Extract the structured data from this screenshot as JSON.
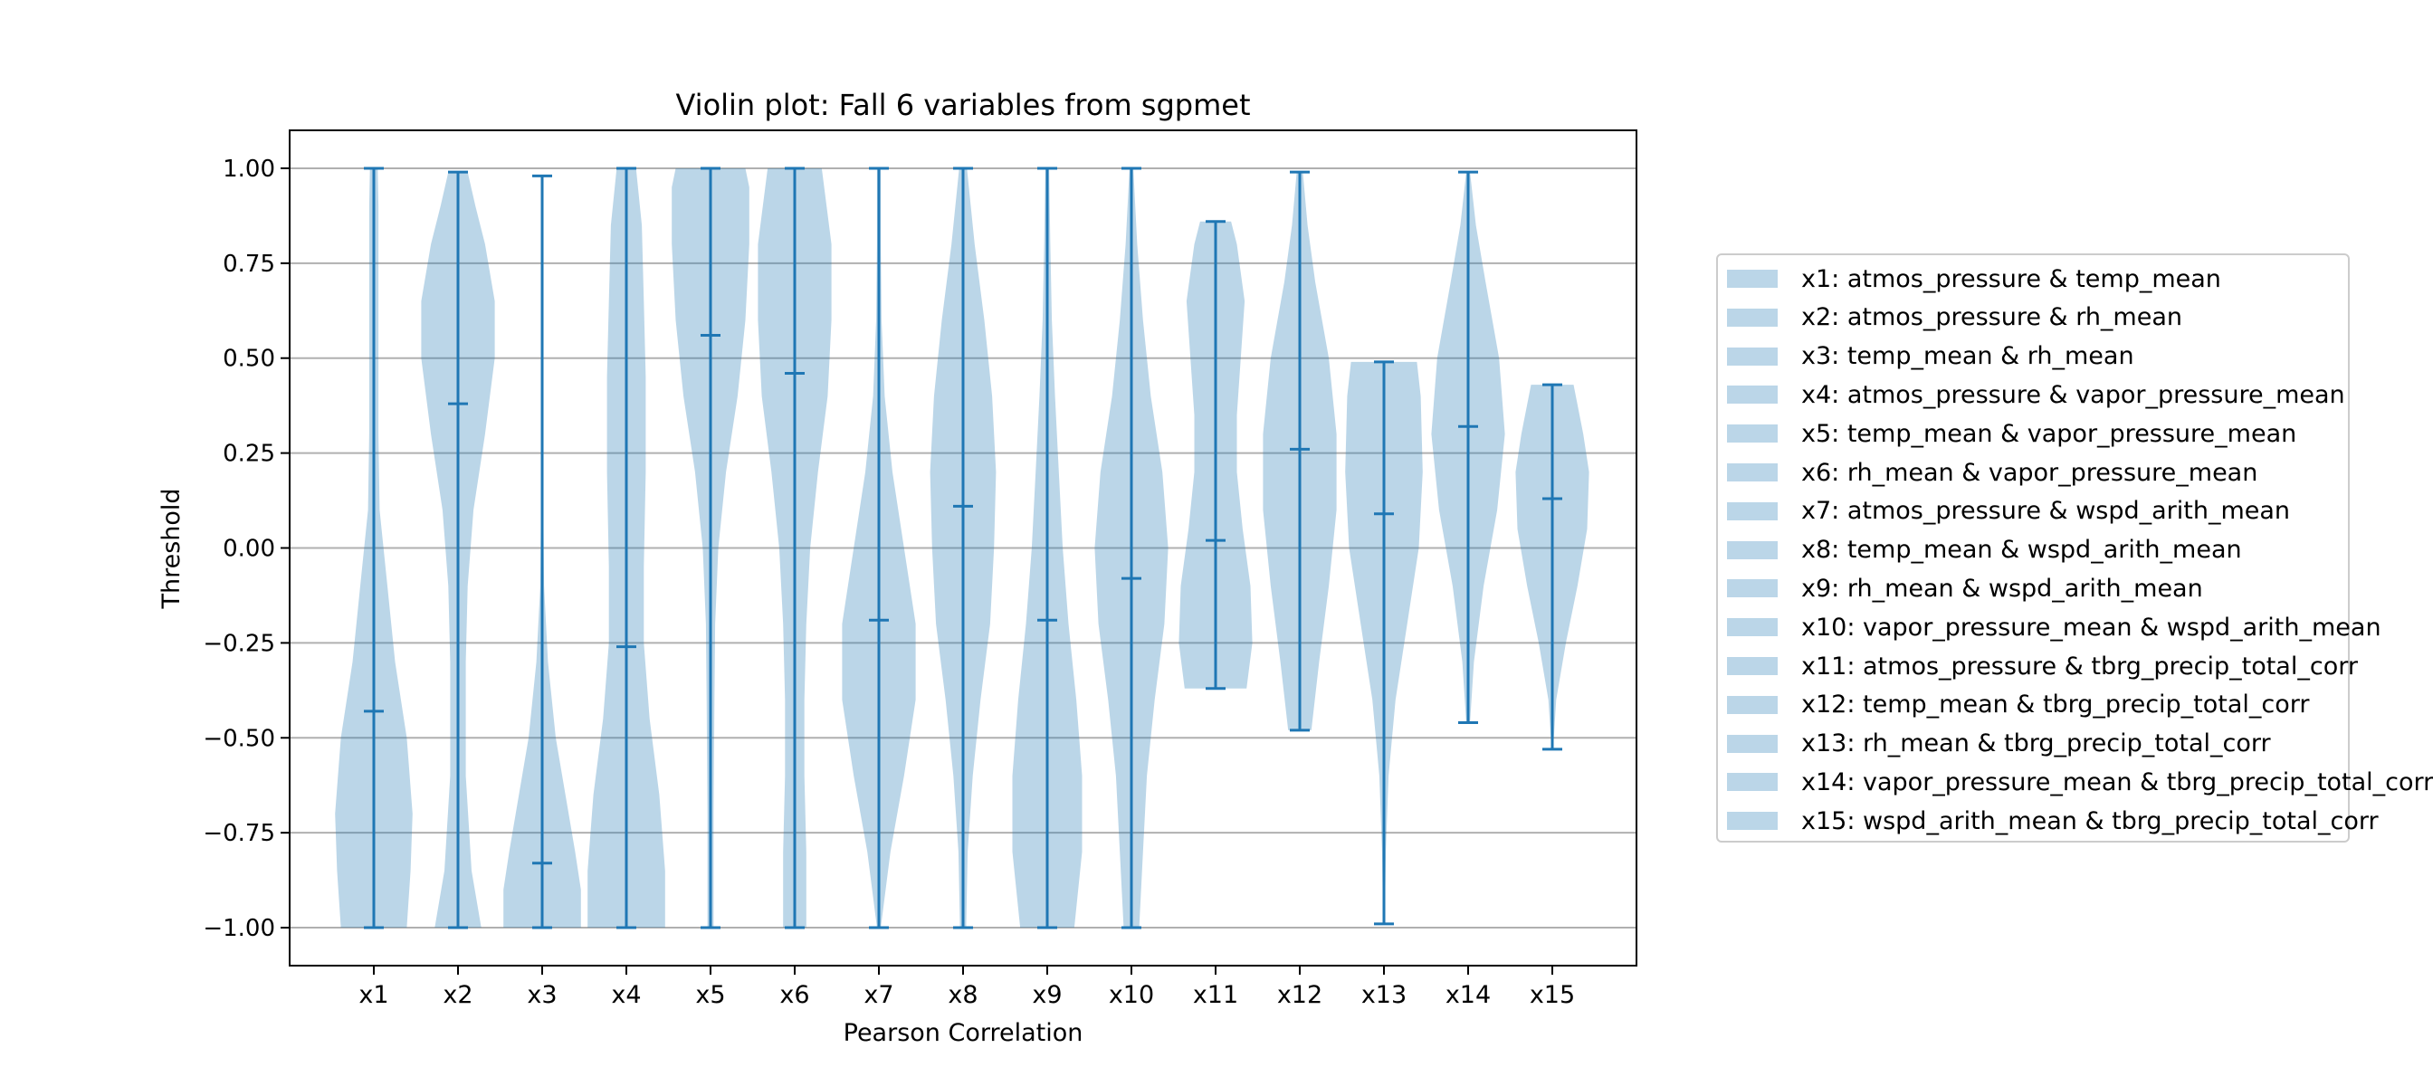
{
  "chart_data": {
    "type": "violin",
    "title": "Violin plot: Fall 6 variables from sgpmet",
    "xlabel": "Pearson Correlation",
    "ylabel": "Threshold",
    "ylim": [
      -1.1,
      1.1
    ],
    "yticks": [
      "1.00",
      "0.75",
      "0.50",
      "0.25",
      "0.00",
      "−0.25",
      "−0.50",
      "−0.75",
      "−1.00"
    ],
    "ytick_values": [
      1.0,
      0.75,
      0.5,
      0.25,
      0.0,
      -0.25,
      -0.5,
      -0.75,
      -1.0
    ],
    "grid": "horizontal",
    "legend_placement": "right, outside plot",
    "colors": {
      "body": "#1f77b4",
      "body_alpha": 0.3,
      "lines": "#1f77b4",
      "grid": "#b0b0b0"
    },
    "categories": [
      "x1",
      "x2",
      "x3",
      "x4",
      "x5",
      "x6",
      "x7",
      "x8",
      "x9",
      "x10",
      "x11",
      "x12",
      "x13",
      "x14",
      "x15"
    ],
    "series": [
      {
        "label": "x1",
        "name": "x1: atmos_pressure & temp_mean",
        "min": -1.0,
        "max": 1.0,
        "median": -0.43,
        "density": [
          [
            -1.0,
            0.85
          ],
          [
            -0.85,
            0.95
          ],
          [
            -0.7,
            1.0
          ],
          [
            -0.5,
            0.85
          ],
          [
            -0.3,
            0.55
          ],
          [
            -0.1,
            0.35
          ],
          [
            0.1,
            0.15
          ],
          [
            0.3,
            0.12
          ],
          [
            0.5,
            0.12
          ],
          [
            0.7,
            0.12
          ],
          [
            0.9,
            0.12
          ],
          [
            1.0,
            0.1
          ]
        ]
      },
      {
        "label": "x2",
        "name": "x2: atmos_pressure & rh_mean",
        "min": -1.0,
        "max": 0.99,
        "median": 0.38,
        "density": [
          [
            -1.0,
            0.6
          ],
          [
            -0.85,
            0.35
          ],
          [
            -0.6,
            0.2
          ],
          [
            -0.3,
            0.2
          ],
          [
            -0.1,
            0.25
          ],
          [
            0.1,
            0.4
          ],
          [
            0.3,
            0.7
          ],
          [
            0.5,
            0.95
          ],
          [
            0.65,
            0.95
          ],
          [
            0.8,
            0.7
          ],
          [
            0.9,
            0.45
          ],
          [
            0.99,
            0.25
          ]
        ]
      },
      {
        "label": "x3",
        "name": "x3: temp_mean & rh_mean",
        "min": -1.0,
        "max": 0.98,
        "median": -0.83,
        "density": [
          [
            -1.0,
            1.0
          ],
          [
            -0.9,
            1.0
          ],
          [
            -0.8,
            0.85
          ],
          [
            -0.65,
            0.6
          ],
          [
            -0.5,
            0.35
          ],
          [
            -0.3,
            0.15
          ],
          [
            -0.1,
            0.05
          ],
          [
            0.2,
            0.02
          ],
          [
            0.98,
            0.02
          ]
        ]
      },
      {
        "label": "x4",
        "name": "x4: atmos_pressure & vapor_pressure_mean",
        "min": -1.0,
        "max": 1.0,
        "median": -0.26,
        "density": [
          [
            -1.0,
            1.0
          ],
          [
            -0.85,
            1.0
          ],
          [
            -0.65,
            0.85
          ],
          [
            -0.45,
            0.6
          ],
          [
            -0.25,
            0.45
          ],
          [
            -0.05,
            0.45
          ],
          [
            0.2,
            0.5
          ],
          [
            0.45,
            0.5
          ],
          [
            0.65,
            0.45
          ],
          [
            0.85,
            0.4
          ],
          [
            1.0,
            0.25
          ]
        ]
      },
      {
        "label": "x5",
        "name": "x5: temp_mean & vapor_pressure_mean",
        "min": -1.0,
        "max": 1.0,
        "median": 0.56,
        "density": [
          [
            -1.0,
            0.08
          ],
          [
            -0.7,
            0.08
          ],
          [
            -0.4,
            0.1
          ],
          [
            -0.2,
            0.12
          ],
          [
            0.0,
            0.2
          ],
          [
            0.2,
            0.4
          ],
          [
            0.4,
            0.7
          ],
          [
            0.6,
            0.9
          ],
          [
            0.8,
            1.0
          ],
          [
            0.95,
            1.0
          ],
          [
            1.0,
            0.9
          ]
        ]
      },
      {
        "label": "x6",
        "name": "x6: rh_mean & vapor_pressure_mean",
        "min": -1.0,
        "max": 1.0,
        "median": 0.46,
        "density": [
          [
            -1.0,
            0.3
          ],
          [
            -0.8,
            0.3
          ],
          [
            -0.6,
            0.25
          ],
          [
            -0.4,
            0.25
          ],
          [
            -0.2,
            0.3
          ],
          [
            0.0,
            0.4
          ],
          [
            0.2,
            0.6
          ],
          [
            0.4,
            0.85
          ],
          [
            0.6,
            0.95
          ],
          [
            0.8,
            0.95
          ],
          [
            1.0,
            0.7
          ]
        ]
      },
      {
        "label": "x7",
        "name": "x7: atmos_pressure & wspd_arith_mean",
        "min": -1.0,
        "max": 1.0,
        "median": -0.19,
        "density": [
          [
            -1.0,
            0.05
          ],
          [
            -0.8,
            0.3
          ],
          [
            -0.6,
            0.65
          ],
          [
            -0.4,
            0.95
          ],
          [
            -0.2,
            0.95
          ],
          [
            0.0,
            0.65
          ],
          [
            0.2,
            0.35
          ],
          [
            0.4,
            0.15
          ],
          [
            0.6,
            0.07
          ],
          [
            0.8,
            0.05
          ],
          [
            1.0,
            0.05
          ]
        ]
      },
      {
        "label": "x8",
        "name": "x8: temp_mean & wspd_arith_mean",
        "min": -1.0,
        "max": 1.0,
        "median": 0.11,
        "density": [
          [
            -1.0,
            0.08
          ],
          [
            -0.8,
            0.12
          ],
          [
            -0.6,
            0.25
          ],
          [
            -0.4,
            0.45
          ],
          [
            -0.2,
            0.7
          ],
          [
            0.0,
            0.8
          ],
          [
            0.2,
            0.85
          ],
          [
            0.4,
            0.75
          ],
          [
            0.6,
            0.55
          ],
          [
            0.8,
            0.3
          ],
          [
            1.0,
            0.1
          ]
        ]
      },
      {
        "label": "x9",
        "name": "x9: rh_mean & wspd_arith_mean",
        "min": -1.0,
        "max": 1.0,
        "median": -0.19,
        "density": [
          [
            -1.0,
            0.7
          ],
          [
            -0.8,
            0.9
          ],
          [
            -0.6,
            0.9
          ],
          [
            -0.4,
            0.75
          ],
          [
            -0.2,
            0.55
          ],
          [
            0.0,
            0.4
          ],
          [
            0.2,
            0.3
          ],
          [
            0.4,
            0.2
          ],
          [
            0.6,
            0.12
          ],
          [
            0.8,
            0.08
          ],
          [
            1.0,
            0.05
          ]
        ]
      },
      {
        "label": "x10",
        "name": "x10: vapor_pressure_mean & wspd_arith_mean",
        "min": -1.0,
        "max": 1.0,
        "median": -0.08,
        "density": [
          [
            -1.0,
            0.2
          ],
          [
            -0.8,
            0.3
          ],
          [
            -0.6,
            0.4
          ],
          [
            -0.4,
            0.6
          ],
          [
            -0.2,
            0.85
          ],
          [
            0.0,
            0.95
          ],
          [
            0.2,
            0.8
          ],
          [
            0.4,
            0.5
          ],
          [
            0.6,
            0.3
          ],
          [
            0.8,
            0.15
          ],
          [
            1.0,
            0.05
          ]
        ]
      },
      {
        "label": "x11",
        "name": "x11: atmos_pressure & tbrg_precip_total_corr",
        "min": -0.37,
        "max": 0.86,
        "median": 0.02,
        "density": [
          [
            -0.37,
            0.8
          ],
          [
            -0.25,
            0.95
          ],
          [
            -0.1,
            0.9
          ],
          [
            0.05,
            0.7
          ],
          [
            0.2,
            0.55
          ],
          [
            0.35,
            0.55
          ],
          [
            0.5,
            0.65
          ],
          [
            0.65,
            0.75
          ],
          [
            0.8,
            0.55
          ],
          [
            0.86,
            0.4
          ]
        ]
      },
      {
        "label": "x12",
        "name": "x12: temp_mean & tbrg_precip_total_corr",
        "min": -0.48,
        "max": 0.99,
        "median": 0.26,
        "density": [
          [
            -0.48,
            0.3
          ],
          [
            -0.3,
            0.5
          ],
          [
            -0.1,
            0.75
          ],
          [
            0.1,
            0.95
          ],
          [
            0.3,
            0.95
          ],
          [
            0.5,
            0.75
          ],
          [
            0.7,
            0.4
          ],
          [
            0.85,
            0.2
          ],
          [
            0.99,
            0.08
          ]
        ]
      },
      {
        "label": "x13",
        "name": "x13: rh_mean & tbrg_precip_total_corr",
        "min": -0.99,
        "max": 0.49,
        "median": 0.09,
        "density": [
          [
            -0.99,
            0.02
          ],
          [
            -0.8,
            0.05
          ],
          [
            -0.6,
            0.12
          ],
          [
            -0.4,
            0.3
          ],
          [
            -0.2,
            0.6
          ],
          [
            0.0,
            0.9
          ],
          [
            0.2,
            1.0
          ],
          [
            0.4,
            0.95
          ],
          [
            0.49,
            0.85
          ]
        ]
      },
      {
        "label": "x14",
        "name": "x14: vapor_pressure_mean & tbrg_precip_total_corr",
        "min": -0.46,
        "max": 0.99,
        "median": 0.32,
        "density": [
          [
            -0.46,
            0.05
          ],
          [
            -0.3,
            0.15
          ],
          [
            -0.1,
            0.4
          ],
          [
            0.1,
            0.75
          ],
          [
            0.3,
            0.95
          ],
          [
            0.5,
            0.8
          ],
          [
            0.7,
            0.45
          ],
          [
            0.85,
            0.2
          ],
          [
            0.99,
            0.05
          ]
        ]
      },
      {
        "label": "x15",
        "name": "x15: wspd_arith_mean & tbrg_precip_total_corr",
        "min": -0.53,
        "max": 0.43,
        "median": 0.13,
        "density": [
          [
            -0.53,
            0.02
          ],
          [
            -0.4,
            0.1
          ],
          [
            -0.25,
            0.35
          ],
          [
            -0.1,
            0.65
          ],
          [
            0.05,
            0.9
          ],
          [
            0.2,
            0.95
          ],
          [
            0.3,
            0.8
          ],
          [
            0.43,
            0.55
          ]
        ]
      }
    ]
  }
}
